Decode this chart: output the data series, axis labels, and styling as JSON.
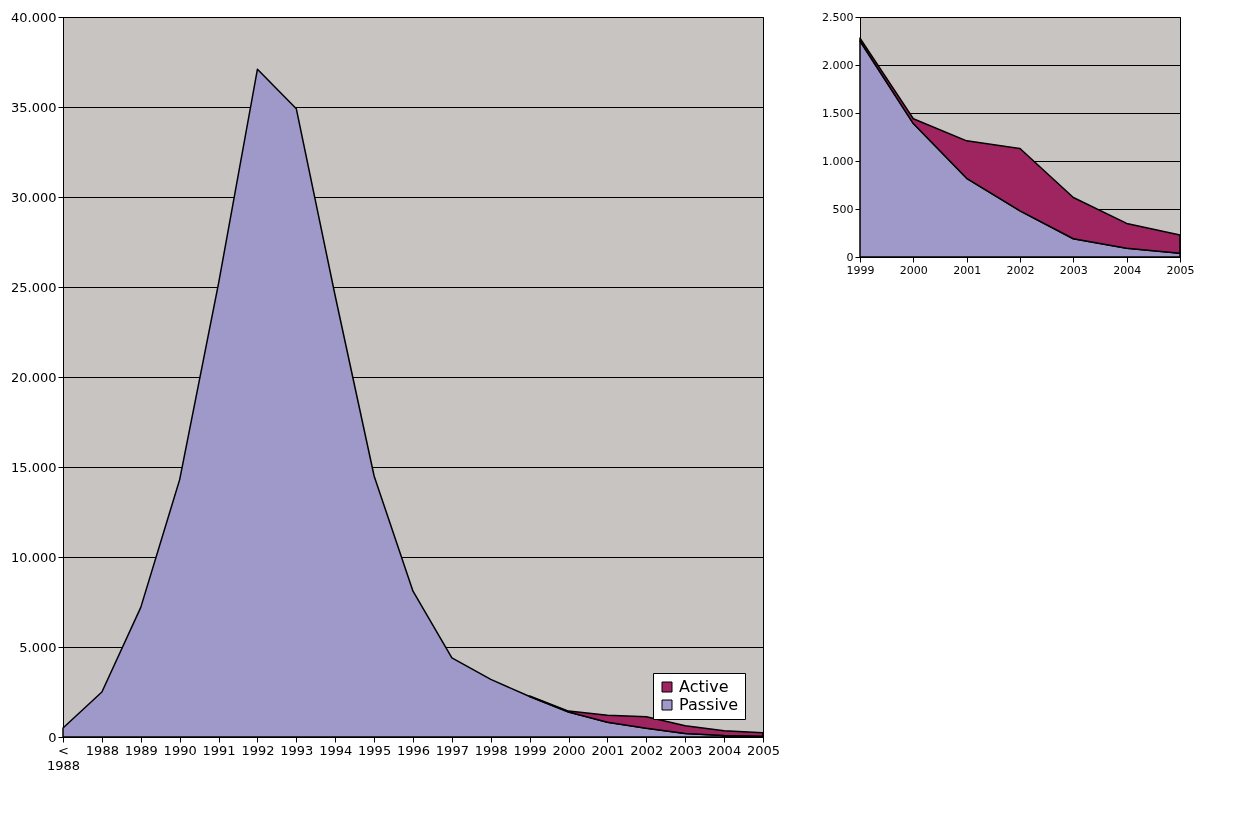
{
  "chart_data": [
    {
      "type": "area",
      "stacked": true,
      "categories": [
        "< 1988",
        "1988",
        "1989",
        "1990",
        "1991",
        "1992",
        "1993",
        "1994",
        "1995",
        "1996",
        "1997",
        "1998",
        "1999",
        "2000",
        "2001",
        "2002",
        "2003",
        "2004",
        "2005"
      ],
      "series": [
        {
          "name": "Passive",
          "color": "#9f99c9",
          "values": [
            500,
            2500,
            7200,
            14300,
            25200,
            37100,
            34900,
            24500,
            14500,
            8100,
            4400,
            3200,
            2250,
            1390,
            820,
            480,
            190,
            90,
            40
          ]
        },
        {
          "name": "Active",
          "color": "#9e2560",
          "values": [
            null,
            null,
            null,
            null,
            null,
            null,
            null,
            null,
            null,
            null,
            null,
            null,
            30,
            50,
            390,
            650,
            430,
            260,
            190
          ]
        }
      ],
      "ylim": [
        0,
        40000
      ],
      "yticks": [
        0,
        {
          "value": 5000,
          "label": "5.000"
        },
        {
          "value": 10000,
          "label": "10.000"
        },
        {
          "value": 15000,
          "label": "15.000"
        },
        {
          "value": 20000,
          "label": "20.000"
        },
        {
          "value": 25000,
          "label": "25.000"
        },
        {
          "value": 30000,
          "label": "30.000"
        },
        {
          "value": 35000,
          "label": "35.000"
        },
        {
          "value": 40000,
          "label": "40.000"
        }
      ],
      "grid": "y",
      "legend": "bottom right"
    },
    {
      "type": "area",
      "stacked": true,
      "categories": [
        "1999",
        "2000",
        "2001",
        "2002",
        "2003",
        "2004",
        "2005"
      ],
      "series": [
        {
          "color": "#9f99c9",
          "values": [
            2250,
            1390,
            820,
            480,
            190,
            90,
            40
          ]
        },
        {
          "color": "#9e2560",
          "values": [
            30,
            50,
            390,
            650,
            430,
            260,
            190
          ]
        }
      ],
      "ylim": [
        0,
        2500
      ],
      "yticks": [
        0,
        500,
        {
          "value": 1000,
          "label": "1.000"
        },
        {
          "value": 1500,
          "label": "1.500"
        },
        {
          "value": 2000,
          "label": "2.000"
        },
        {
          "value": 2500,
          "label": "2.500"
        }
      ],
      "grid": "y"
    }
  ]
}
